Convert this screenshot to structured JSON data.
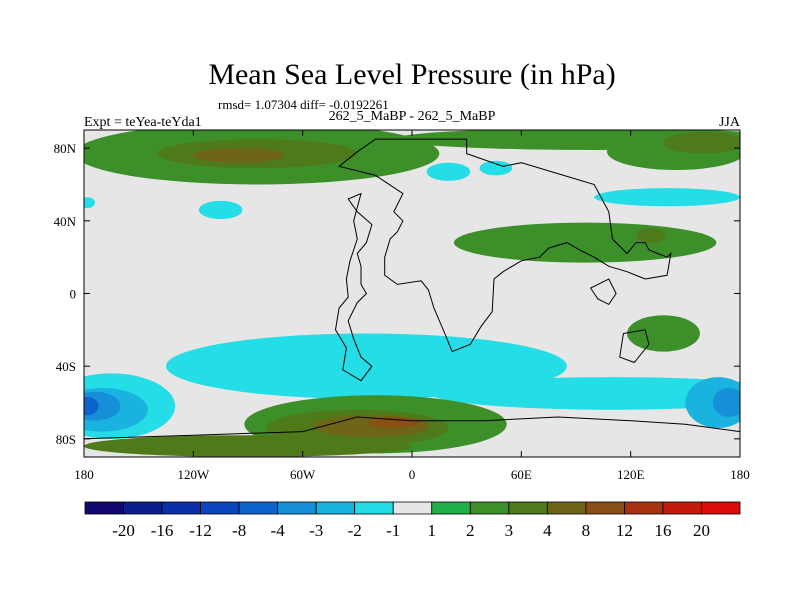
{
  "chart_data": {
    "type": "heatmap",
    "title": "Mean Sea Level Pressure (in hPa)",
    "stats_label": "rmsd= 1.07304 diff= -0.0192261",
    "left_label": "Expt = teYea-teYda1",
    "center_label": "262_5_MaBP - 262_5_MaBP",
    "right_label": "JJA",
    "x_range": [
      -180,
      180
    ],
    "y_range": [
      -90,
      90
    ],
    "x_ticks": [
      {
        "value": -180,
        "label": "180"
      },
      {
        "value": -120,
        "label": "120W"
      },
      {
        "value": -60,
        "label": "60W"
      },
      {
        "value": 0,
        "label": "0"
      },
      {
        "value": 60,
        "label": "60E"
      },
      {
        "value": 120,
        "label": "120E"
      },
      {
        "value": 180,
        "label": "180"
      }
    ],
    "y_ticks": [
      {
        "value": 80,
        "label": "80N"
      },
      {
        "value": 40,
        "label": "40N"
      },
      {
        "value": 0,
        "label": "0"
      },
      {
        "value": -40,
        "label": "40S"
      },
      {
        "value": -80,
        "label": "80S"
      }
    ],
    "colorbar": {
      "levels": [
        "-20",
        "-16",
        "-12",
        "-8",
        "-4",
        "-3",
        "-2",
        "-1",
        "1",
        "2",
        "3",
        "4",
        "8",
        "12",
        "16",
        "20"
      ],
      "colors": [
        "#12086f",
        "#0a1f8f",
        "#0a2fa8",
        "#0b45c0",
        "#0f63cc",
        "#1590d8",
        "#1ab3e0",
        "#25dde6",
        "#e6e6e6",
        "#22b04a",
        "#3d8f2a",
        "#4e7a1a",
        "#6e6616",
        "#8a4f14",
        "#a8320f",
        "#c21a0c",
        "#dc0a0a"
      ]
    },
    "anomalies": [
      {
        "lon": -85,
        "lat": 77,
        "rx": 100,
        "ry": 17,
        "level": "2"
      },
      {
        "lon": -85,
        "lat": 77,
        "rx": 55,
        "ry": 8,
        "level": "3"
      },
      {
        "lon": -95,
        "lat": 76,
        "rx": 25,
        "ry": 4,
        "level": "4"
      },
      {
        "lon": 145,
        "lat": 78,
        "rx": 38,
        "ry": 10,
        "level": "2"
      },
      {
        "lon": 100,
        "lat": 85,
        "rx": 110,
        "ry": 6,
        "level": "2"
      },
      {
        "lon": 160,
        "lat": 83,
        "rx": 22,
        "ry": 6,
        "level": "3"
      },
      {
        "lon": -178,
        "lat": 50,
        "rx": 4,
        "ry": 3,
        "level": "-1"
      },
      {
        "lon": -105,
        "lat": 46,
        "rx": 12,
        "ry": 5,
        "level": "-1"
      },
      {
        "lon": 20,
        "lat": 67,
        "rx": 12,
        "ry": 5,
        "level": "-1"
      },
      {
        "lon": 46,
        "lat": 69,
        "rx": 9,
        "ry": 4,
        "level": "-1"
      },
      {
        "lon": 140,
        "lat": 53,
        "rx": 40,
        "ry": 5,
        "level": "-1"
      },
      {
        "lon": 95,
        "lat": 28,
        "rx": 72,
        "ry": 11,
        "level": "2"
      },
      {
        "lon": 131,
        "lat": 32,
        "rx": 8,
        "ry": 4,
        "level": "3"
      },
      {
        "lon": 138,
        "lat": -22,
        "rx": 20,
        "ry": 10,
        "level": "2"
      },
      {
        "lon": -25,
        "lat": -40,
        "rx": 110,
        "ry": 18,
        "level": "-1"
      },
      {
        "lon": 110,
        "lat": -55,
        "rx": 100,
        "ry": 9,
        "level": "-1"
      },
      {
        "lon": -165,
        "lat": -62,
        "rx": 35,
        "ry": 18,
        "level": "-1"
      },
      {
        "lon": -170,
        "lat": -64,
        "rx": 25,
        "ry": 12,
        "level": "-2"
      },
      {
        "lon": -174,
        "lat": -62,
        "rx": 14,
        "ry": 8,
        "level": "-3"
      },
      {
        "lon": -178,
        "lat": -62,
        "rx": 6,
        "ry": 5,
        "level": "-4"
      },
      {
        "lon": 168,
        "lat": -60,
        "rx": 18,
        "ry": 14,
        "level": "-2"
      },
      {
        "lon": 174,
        "lat": -60,
        "rx": 9,
        "ry": 8,
        "level": "-3"
      },
      {
        "lon": -20,
        "lat": -72,
        "rx": 72,
        "ry": 16,
        "level": "2"
      },
      {
        "lon": -30,
        "lat": -74,
        "rx": 50,
        "ry": 10,
        "level": "3"
      },
      {
        "lon": -22,
        "lat": -73,
        "rx": 32,
        "ry": 6,
        "level": "4"
      },
      {
        "lon": -10,
        "lat": -71,
        "rx": 14,
        "ry": 3,
        "level": "8"
      },
      {
        "lon": -90,
        "lat": -84,
        "rx": 90,
        "ry": 6,
        "level": "3"
      }
    ]
  }
}
